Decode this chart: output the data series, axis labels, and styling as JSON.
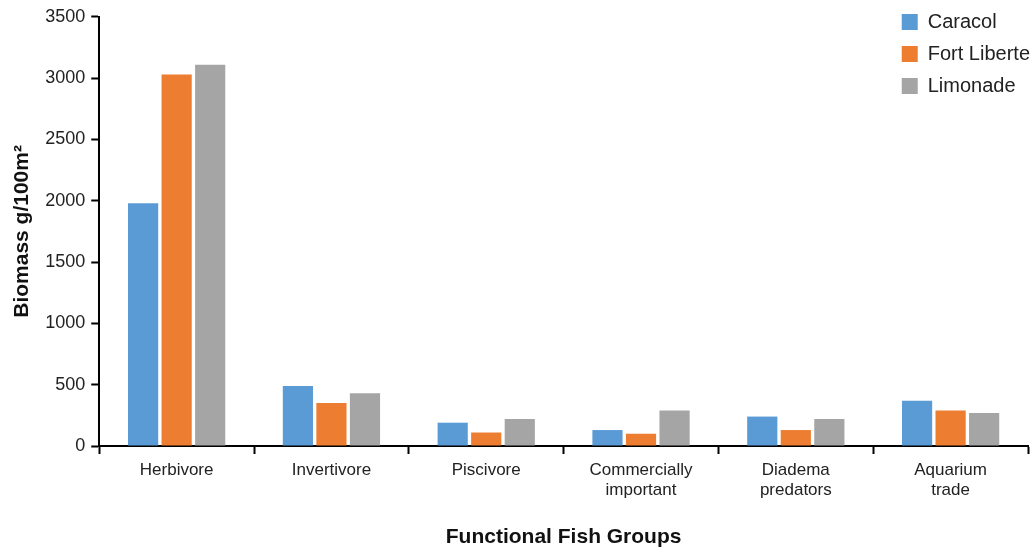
{
  "chart_data": {
    "type": "bar",
    "xlabel": "Functional Fish Groups",
    "ylabel": "Biomass g/100m²",
    "categories": [
      "Herbivore",
      "Invertivore",
      "Piscivore",
      "Commercially important",
      "Diadema predators",
      "Aquarium trade"
    ],
    "series": [
      {
        "name": "Caracol",
        "color": "#5b9bd5",
        "values": [
          1980,
          490,
          190,
          130,
          240,
          370
        ]
      },
      {
        "name": "Fort Liberte",
        "color": "#ed7d31",
        "values": [
          3030,
          350,
          110,
          100,
          130,
          290
        ]
      },
      {
        "name": "Limonade",
        "color": "#a5a5a5",
        "values": [
          3110,
          430,
          220,
          290,
          220,
          270
        ]
      }
    ],
    "ylim": [
      0,
      3500
    ],
    "yticks": [
      0,
      500,
      1000,
      1500,
      2000,
      2500,
      3000,
      3500
    ],
    "grid": false,
    "legend": "top right"
  }
}
